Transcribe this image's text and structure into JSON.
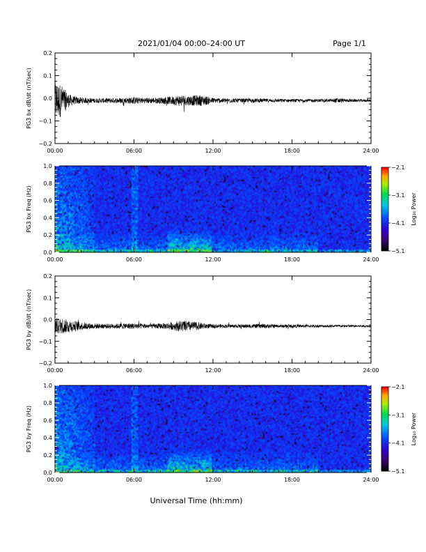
{
  "header": {
    "title": "2021/01/04  00:00–24:00 UT",
    "page": "Page 1/1"
  },
  "xlabel": "Universal Time (hh:mm)",
  "chart_data": [
    {
      "type": "line",
      "ylabel": "PG3 bx dB/dt (nT/sec)",
      "xlim": [
        0,
        24
      ],
      "ylim": [
        -0.2,
        0.2
      ],
      "x_ticks": [
        "00:00",
        "06:00",
        "12:00",
        "18:00",
        "24:00"
      ],
      "y_ticks": [
        "0.2",
        "0.1",
        "0.0",
        "−0.1",
        "−0.2"
      ],
      "baseline": -0.01,
      "envelope": {
        "x": [
          0,
          0.5,
          1,
          1.5,
          2,
          3,
          4,
          5,
          5.5,
          6,
          7,
          8,
          9,
          9.5,
          10,
          11,
          11.5,
          12,
          13,
          14,
          15,
          16,
          17,
          18,
          19,
          20,
          21,
          21.5,
          22,
          23,
          24
        ],
        "amp": [
          0.09,
          0.07,
          0.03,
          0.018,
          0.014,
          0.01,
          0.011,
          0.012,
          0.014,
          0.016,
          0.012,
          0.014,
          0.02,
          0.026,
          0.022,
          0.024,
          0.02,
          0.012,
          0.01,
          0.009,
          0.009,
          0.008,
          0.008,
          0.007,
          0.007,
          0.007,
          0.007,
          0.012,
          0.007,
          0.006,
          0.006
        ]
      }
    },
    {
      "type": "heatmap",
      "ylabel": "PG3 bx Freq (Hz)",
      "colorbar_label": "Log₁₀ Power",
      "colorbar_ticks": [
        "−2.1",
        "−3.1",
        "−4.1",
        "−5.1"
      ],
      "zlim": [
        -5.1,
        -2.1
      ],
      "xlim": [
        0,
        24
      ],
      "ylim": [
        0,
        1.0
      ],
      "x_ticks": [
        "00:00",
        "06:00",
        "12:00",
        "18:00",
        "24:00"
      ],
      "y_ticks": [
        "1.0",
        "0.8",
        "0.6",
        "0.4",
        "0.2",
        "0.0"
      ],
      "features": [
        "broadband activity 00:00–03:00",
        "vertical band ~06:00",
        "enhanced power 09:00–11:30 below 0.3 Hz"
      ]
    },
    {
      "type": "line",
      "ylabel": "PG3 by dB/dt (nT/sec)",
      "xlim": [
        0,
        24
      ],
      "ylim": [
        -0.2,
        0.2
      ],
      "x_ticks": [
        "00:00",
        "06:00",
        "12:00",
        "18:00",
        "24:00"
      ],
      "y_ticks": [
        "0.2",
        "0.1",
        "0.0",
        "−0.1",
        "−0.2"
      ],
      "baseline": -0.03,
      "envelope": {
        "x": [
          0,
          0.5,
          1,
          1.5,
          2,
          3,
          4,
          5,
          5.5,
          6,
          7,
          8,
          9,
          9.5,
          10,
          11,
          11.5,
          12,
          13,
          14,
          15,
          16,
          17,
          18,
          19,
          20,
          21,
          22,
          23,
          24
        ],
        "amp": [
          0.04,
          0.035,
          0.03,
          0.025,
          0.018,
          0.012,
          0.011,
          0.012,
          0.014,
          0.014,
          0.01,
          0.012,
          0.018,
          0.026,
          0.024,
          0.016,
          0.012,
          0.009,
          0.008,
          0.008,
          0.009,
          0.01,
          0.007,
          0.007,
          0.006,
          0.006,
          0.006,
          0.005,
          0.005,
          0.005
        ]
      }
    },
    {
      "type": "heatmap",
      "ylabel": "PG3 by Freq (Hz)",
      "colorbar_label": "Log₁₀ Power",
      "colorbar_ticks": [
        "−2.1",
        "−3.1",
        "−4.1",
        "−5.1"
      ],
      "zlim": [
        -5.1,
        -2.1
      ],
      "xlim": [
        0,
        24
      ],
      "ylim": [
        0,
        1.0
      ],
      "x_ticks": [
        "00:00",
        "06:00",
        "12:00",
        "18:00",
        "24:00"
      ],
      "y_ticks": [
        "1.0",
        "0.8",
        "0.6",
        "0.4",
        "0.2",
        "0.0"
      ],
      "features": [
        "broadband activity 00:00–03:00",
        "vertical band ~06:00",
        "enhanced power 09:00–11:30 below 0.3 Hz"
      ]
    }
  ]
}
